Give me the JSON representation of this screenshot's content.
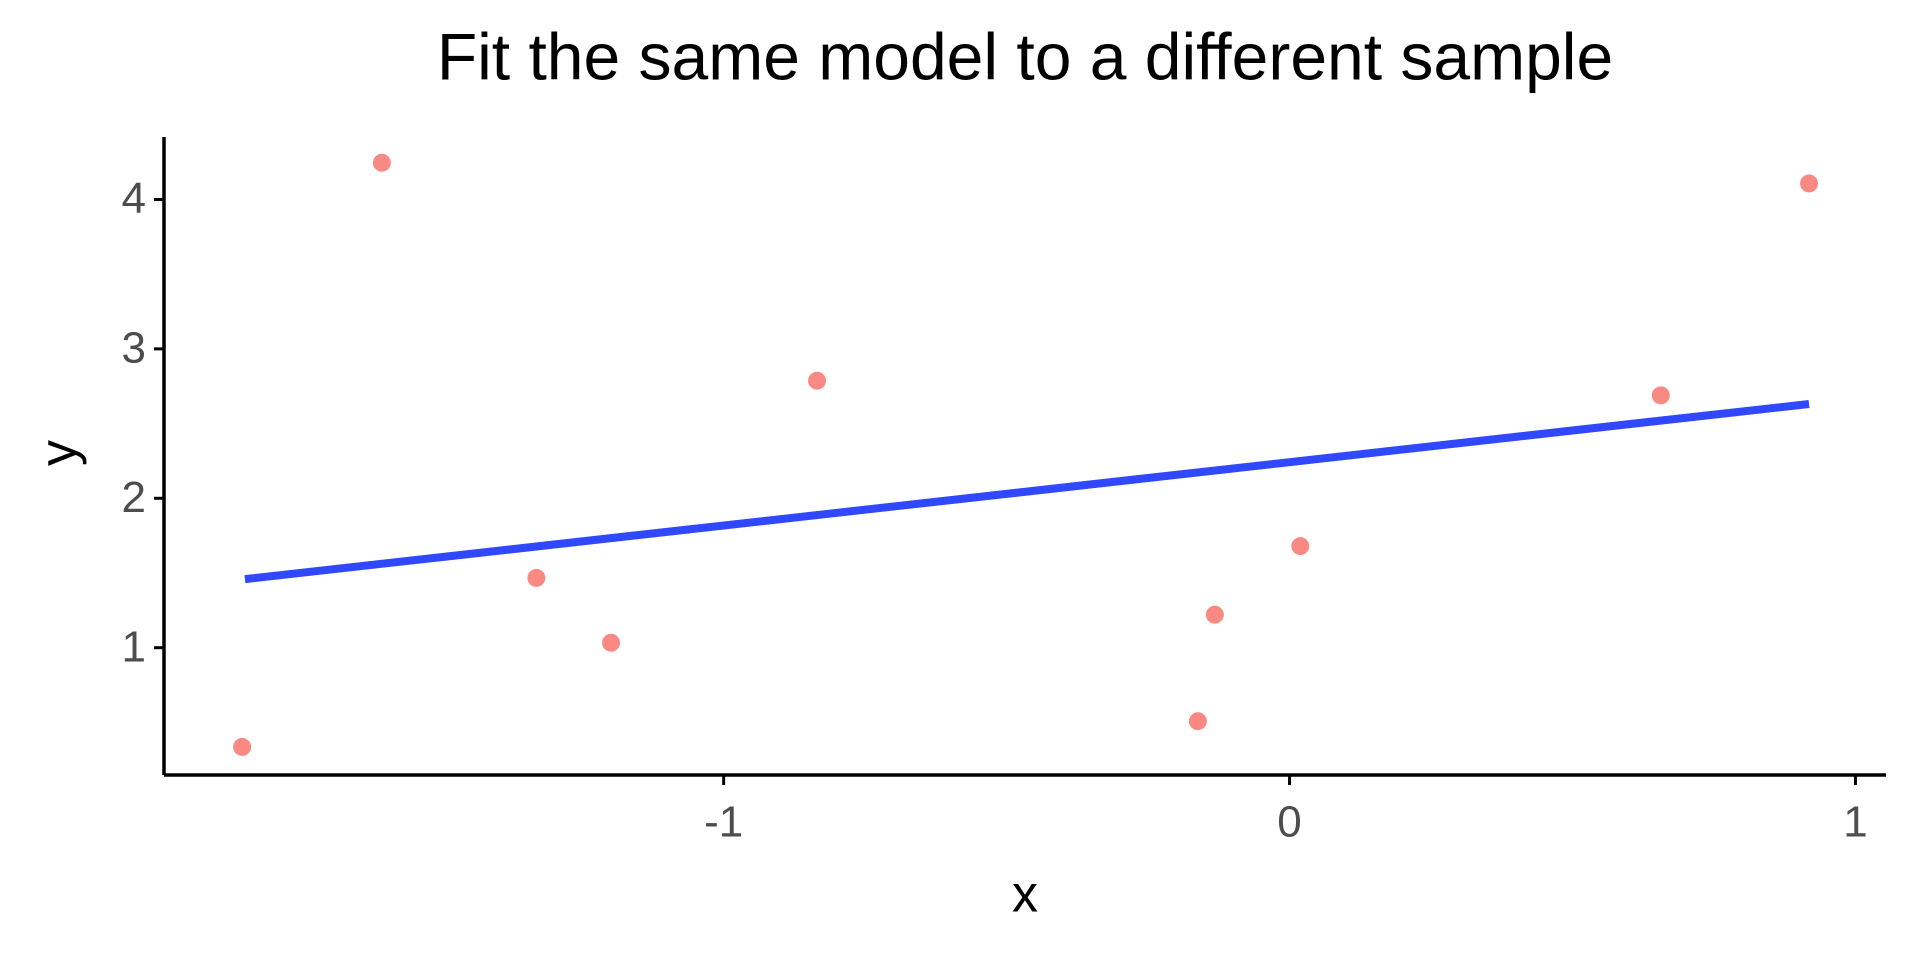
{
  "chart_data": {
    "type": "scatter",
    "title": "Fit the same model to a different sample",
    "x_label": "x",
    "y_label": "y",
    "series": [
      {
        "color": "#F8766D",
        "style": "points",
        "x": [
          -1.851,
          -1.604,
          -1.331,
          -1.199,
          -0.835,
          -0.162,
          -0.132,
          0.019,
          0.656,
          0.918
        ],
        "values": [
          0.336,
          4.246,
          1.467,
          1.033,
          2.787,
          0.508,
          1.221,
          1.68,
          2.689,
          4.107
        ]
      },
      {
        "color": "#3048FF",
        "style": "line",
        "x": [
          -1.846,
          0.918
        ],
        "values": [
          1.459,
          2.631
        ]
      }
    ],
    "xlim": [
      -1.989,
      1.054
    ],
    "ylim": [
      0.148,
      4.418
    ],
    "xticks": [
      -1,
      0,
      1
    ],
    "yticks": [
      1,
      2,
      3,
      4
    ],
    "grid": false
  }
}
